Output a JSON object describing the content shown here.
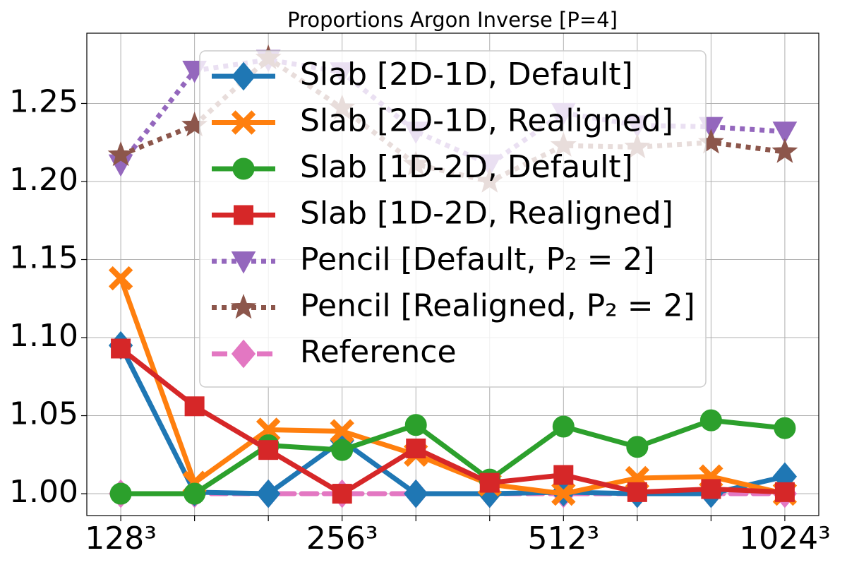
{
  "chart_data": {
    "type": "line",
    "title": "Proportions Argon Inverse [P=4]",
    "categories": [
      "128³",
      null,
      null,
      "256³",
      null,
      null,
      "512³",
      null,
      null,
      "1024³"
    ],
    "ylim": [
      0.986,
      1.295
    ],
    "yticks": [
      {
        "value": 1.0,
        "label": "1.00"
      },
      1.05,
      {
        "value": 1.1,
        "label": "1.10"
      },
      1.15,
      {
        "value": 1.2,
        "label": "1.20"
      },
      1.25
    ],
    "grid": true,
    "legend": "upper center",
    "series": [
      {
        "name": "Reference",
        "color": "#e377c2",
        "marker": "diamond",
        "linestyle": "dashed",
        "values": [
          1,
          1,
          1,
          1,
          1,
          1,
          1,
          1,
          1,
          1
        ]
      },
      {
        "name": "Slab [2D-1D, Default]",
        "color": "#1f77b4",
        "marker": "diamond",
        "linestyle": "solid",
        "values": [
          1.095,
          1.001,
          1.0,
          1.034,
          1.0,
          1.0,
          1.001,
          1.0,
          1.0,
          1.011
        ]
      },
      {
        "name": "Slab [2D-1D, Realigned]",
        "color": "#ff7f0e",
        "marker": "x",
        "linestyle": "solid",
        "values": [
          1.138,
          1.007,
          1.041,
          1.04,
          1.025,
          1.006,
          1.0,
          1.01,
          1.011,
          1.0
        ]
      },
      {
        "name": "Slab [1D-2D, Default]",
        "color": "#2ca02c",
        "marker": "circle",
        "linestyle": "solid",
        "values": [
          1.0,
          1.0,
          1.031,
          1.028,
          1.044,
          1.009,
          1.043,
          1.03,
          1.047,
          1.042
        ]
      },
      {
        "name": "Slab [1D-2D, Realigned]",
        "color": "#d62728",
        "marker": "square",
        "linestyle": "solid",
        "values": [
          1.093,
          1.056,
          1.028,
          1.0,
          1.029,
          1.007,
          1.012,
          1.001,
          1.003,
          1.001
        ]
      },
      {
        "name": "Pencil [Default, P₂ = 2]",
        "color": "#9467bd",
        "marker": "triangle-down",
        "linestyle": "dotted",
        "values": [
          1.211,
          1.271,
          1.278,
          1.27,
          1.232,
          1.211,
          1.244,
          1.236,
          1.235,
          1.232
        ]
      },
      {
        "name": "Pencil [Realigned, P₂ = 2]",
        "color": "#8c564b",
        "marker": "star",
        "linestyle": "dotted",
        "values": [
          1.217,
          1.236,
          1.279,
          1.247,
          1.211,
          1.2,
          1.223,
          1.222,
          1.225,
          1.219
        ]
      }
    ],
    "legend_order": [
      1,
      2,
      3,
      4,
      5,
      6,
      0
    ]
  }
}
